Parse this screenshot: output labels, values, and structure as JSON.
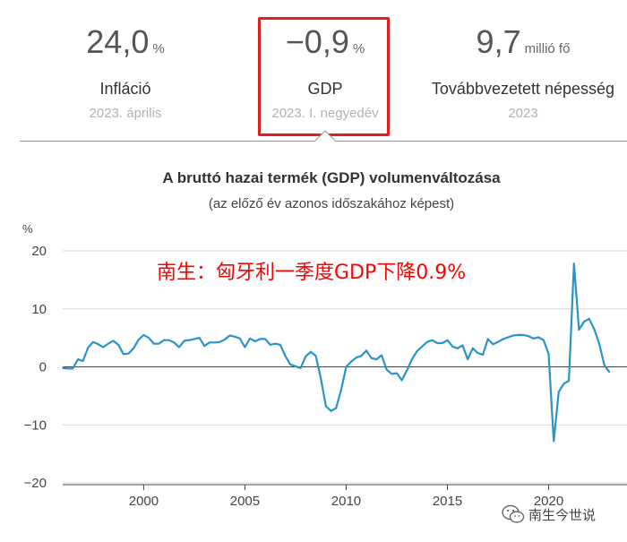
{
  "stats": {
    "inflation": {
      "value": "24,0",
      "unit": "%",
      "label": "Infláció",
      "period": "2023. április"
    },
    "gdp": {
      "value": "−0,9",
      "unit": "%",
      "label": "GDP",
      "period": "2023. I. negyedév"
    },
    "population": {
      "value": "9,7",
      "unit": "millió fő",
      "label": "Továbbvezetett népesség",
      "period": "2023"
    }
  },
  "colors": {
    "line": "#2b94c4",
    "highlight": "#e02020",
    "annotation": "#ff0000"
  },
  "annotation": "南生：匈牙利一季度GDP下降0.9%",
  "watermark": {
    "icon": "wechat-icon",
    "text": "南生今世说"
  },
  "chart_data": {
    "type": "line",
    "title": "A bruttó hazai termék (GDP) volumenváltozása",
    "subtitle": "(az előző év azonos időszakához képest)",
    "ylabel": "%",
    "xlabel": "",
    "ylim": [
      -20,
      20
    ],
    "xlim": [
      1996,
      2023.25
    ],
    "yticks": [
      -20,
      -10,
      0,
      10,
      20
    ],
    "xticks": [
      2000,
      2005,
      2010,
      2015,
      2020
    ],
    "grid": "horizontal",
    "series": [
      {
        "x": [
          1996,
          1996.25,
          1996.5,
          1996.75,
          1997,
          1997.25,
          1997.5,
          1997.75,
          1998,
          1998.25,
          1998.5,
          1998.75,
          1999,
          1999.25,
          1999.5,
          1999.75,
          2000,
          2000.25,
          2000.5,
          2000.75,
          2001,
          2001.25,
          2001.5,
          2001.75,
          2002,
          2002.25,
          2002.5,
          2002.75,
          2003,
          2003.25,
          2003.5,
          2003.75,
          2004,
          2004.25,
          2004.5,
          2004.75,
          2005,
          2005.25,
          2005.5,
          2005.75,
          2006,
          2006.25,
          2006.5,
          2006.75,
          2007,
          2007.25,
          2007.5,
          2007.75,
          2008,
          2008.25,
          2008.5,
          2008.75,
          2009,
          2009.25,
          2009.5,
          2009.75,
          2010,
          2010.25,
          2010.5,
          2010.75,
          2011,
          2011.25,
          2011.5,
          2011.75,
          2012,
          2012.25,
          2012.5,
          2012.75,
          2013,
          2013.25,
          2013.5,
          2013.75,
          2014,
          2014.25,
          2014.5,
          2014.75,
          2015,
          2015.25,
          2015.5,
          2015.75,
          2016,
          2016.25,
          2016.5,
          2016.75,
          2017,
          2017.25,
          2017.5,
          2017.75,
          2018,
          2018.25,
          2018.5,
          2018.75,
          2019,
          2019.25,
          2019.5,
          2019.75,
          2020,
          2020.25,
          2020.5,
          2020.75,
          2021,
          2021.25,
          2021.5,
          2021.75,
          2022,
          2022.25,
          2022.5,
          2022.75,
          2023
        ],
        "values": [
          -0.2,
          -0.3,
          -0.3,
          1.3,
          1.0,
          3.3,
          4.3,
          3.9,
          3.4,
          4.0,
          4.5,
          3.8,
          2.2,
          2.3,
          3.2,
          4.7,
          5.5,
          5.0,
          4.0,
          4.0,
          4.6,
          4.6,
          4.2,
          3.4,
          4.5,
          4.6,
          4.8,
          5.0,
          3.6,
          4.2,
          4.2,
          4.3,
          4.7,
          5.4,
          5.2,
          4.9,
          3.4,
          4.9,
          4.4,
          4.8,
          4.8,
          3.8,
          4.0,
          3.8,
          1.8,
          0.4,
          0.1,
          -0.2,
          1.8,
          2.6,
          1.9,
          -2.0,
          -6.8,
          -7.6,
          -7.1,
          -4.0,
          0.0,
          0.9,
          1.6,
          1.9,
          2.8,
          1.5,
          1.3,
          2.0,
          -0.5,
          -1.2,
          -1.1,
          -2.3,
          -0.6,
          1.3,
          2.7,
          3.5,
          4.3,
          4.6,
          4.1,
          4.1,
          4.6,
          3.5,
          3.2,
          3.7,
          1.3,
          3.2,
          2.4,
          2.1,
          4.8,
          3.9,
          4.3,
          4.8,
          5.1,
          5.4,
          5.5,
          5.5,
          5.3,
          4.9,
          5.1,
          4.6,
          2.2,
          -12.8,
          -4.3,
          -2.9,
          -2.4,
          17.8,
          6.4,
          7.8,
          8.3,
          6.5,
          4.0,
          0.3,
          -0.9
        ]
      }
    ]
  }
}
